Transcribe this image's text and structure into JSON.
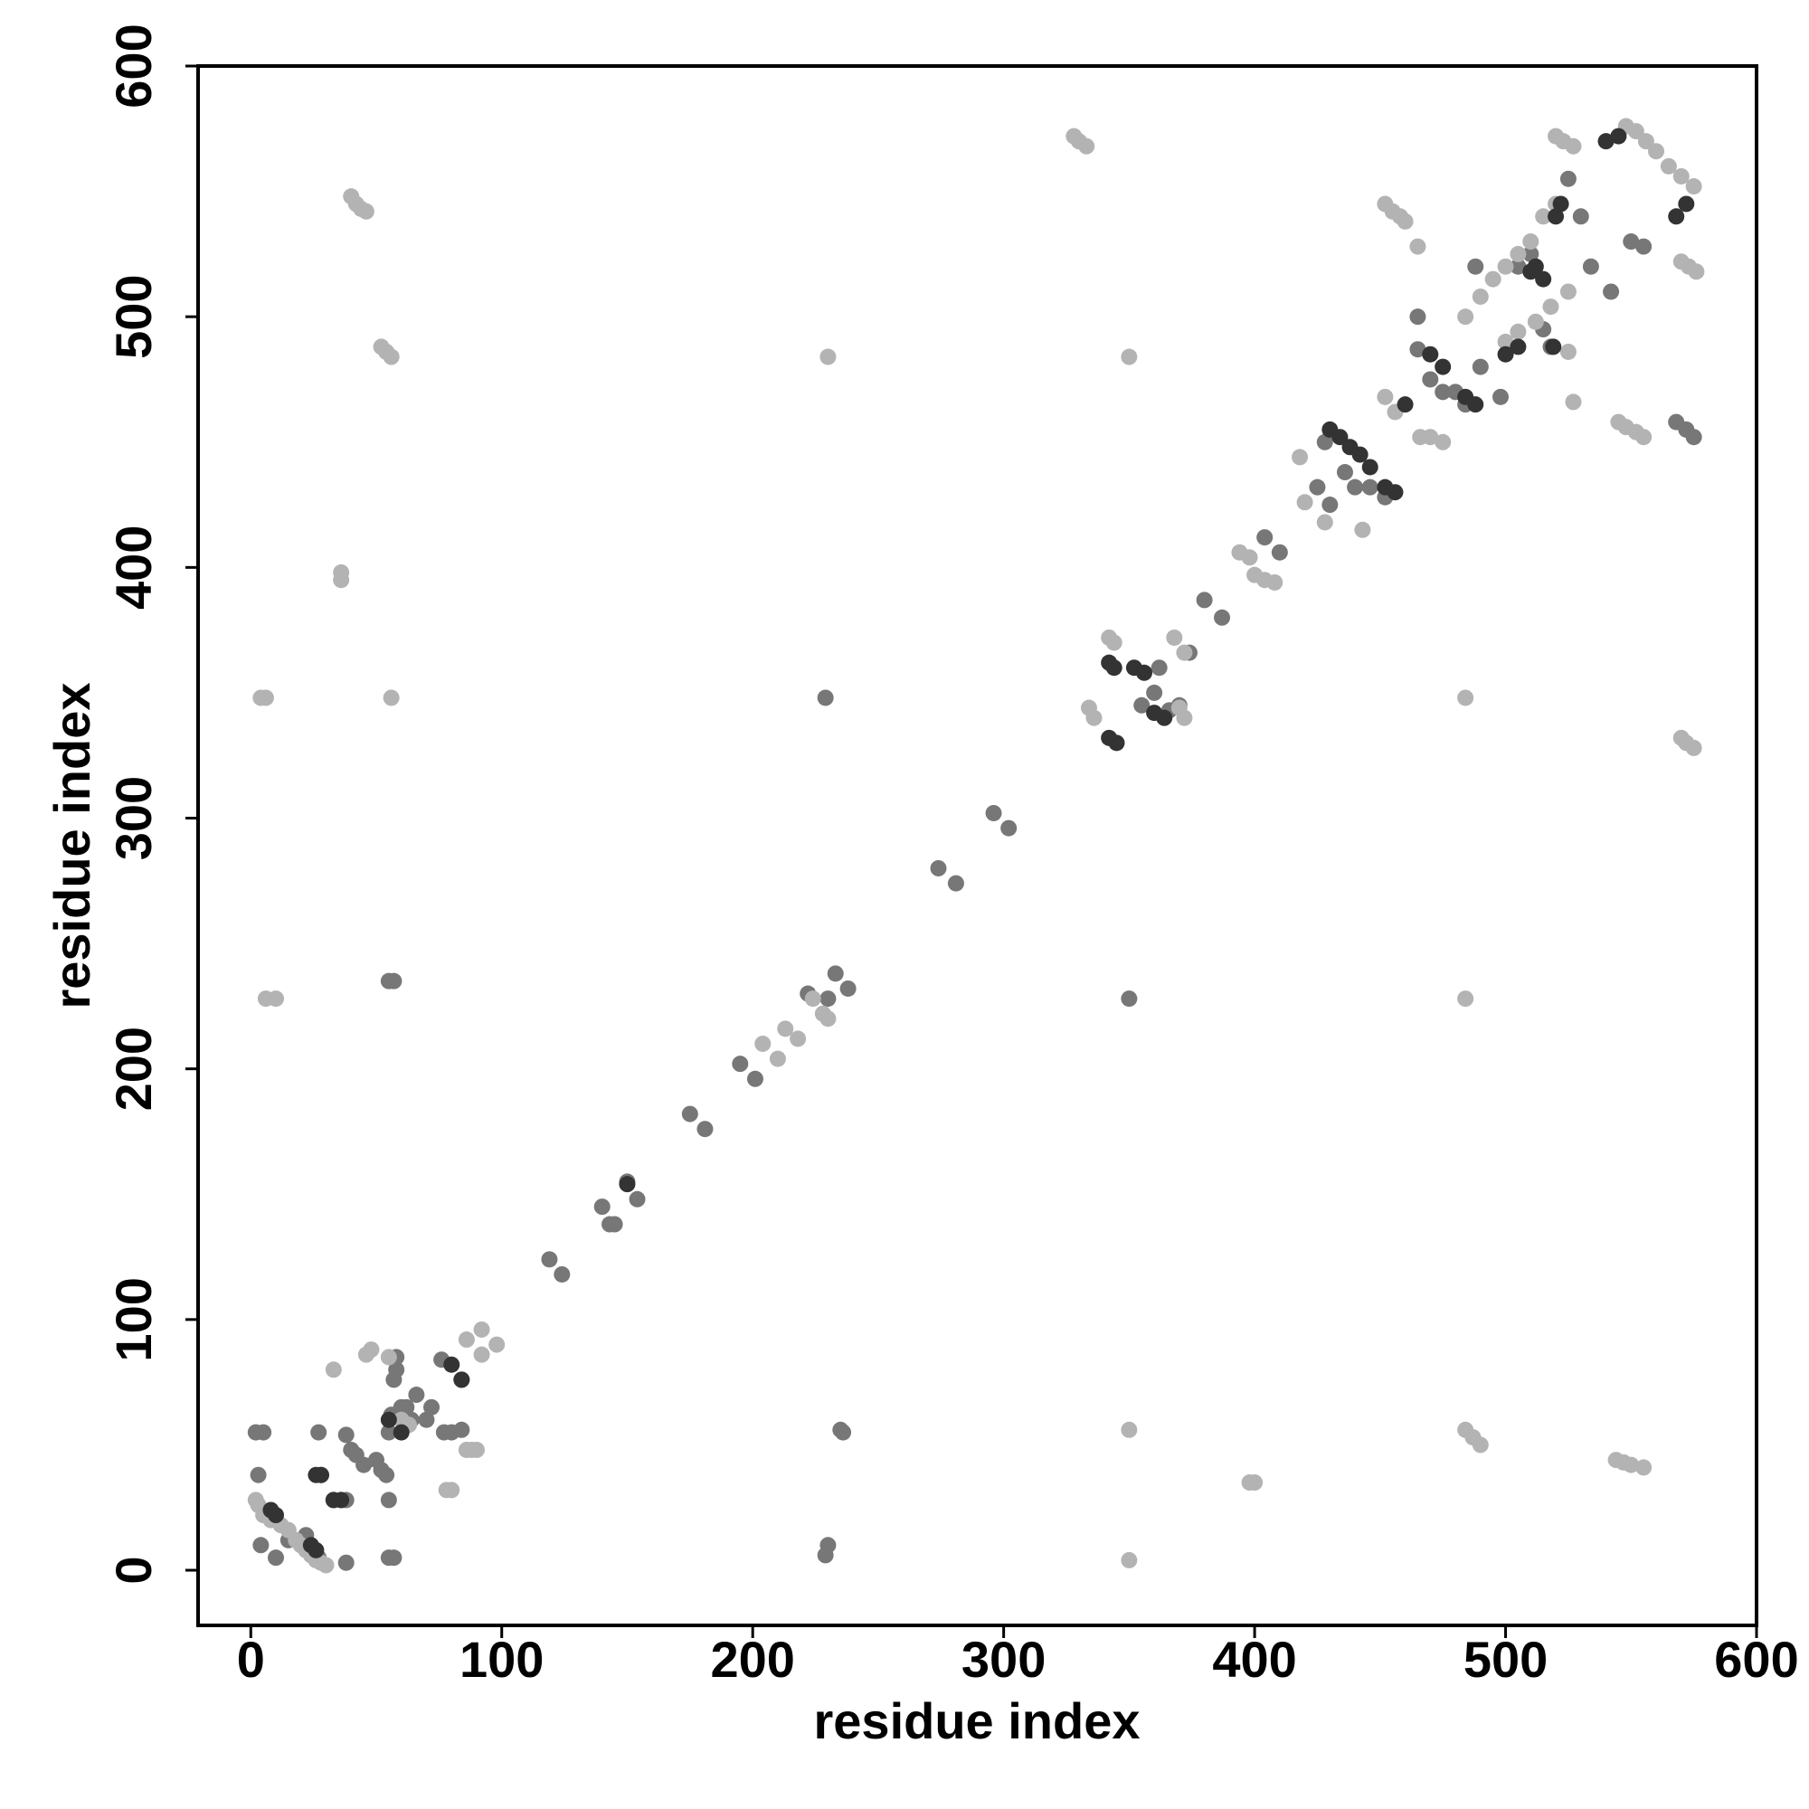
{
  "chart_data": {
    "type": "scatter",
    "x_label": "residue index",
    "y_label": "residue index",
    "xlim": [
      -21,
      600
    ],
    "ylim": [
      -22,
      600
    ],
    "xticks": [
      0,
      100,
      200,
      300,
      400,
      500,
      600
    ],
    "yticks": [
      0,
      100,
      200,
      300,
      400,
      500,
      600
    ],
    "series": [
      {
        "color": "#777777",
        "x": [
          2,
          5,
          3,
          4,
          10,
          15,
          20,
          22,
          25,
          27,
          27,
          28,
          33,
          36,
          38,
          38,
          38,
          40,
          42,
          45,
          50,
          52,
          54,
          55,
          55,
          56,
          58,
          58,
          57,
          60,
          62,
          64,
          66,
          70,
          72,
          76,
          77,
          80,
          84,
          84,
          55,
          57,
          55,
          57,
          119,
          124,
          140,
          143,
          145,
          150,
          154,
          175,
          181,
          195,
          201,
          230,
          229,
          229,
          233,
          238,
          235,
          236,
          230,
          222,
          274,
          281,
          296,
          302,
          350,
          355,
          360,
          362,
          366,
          370,
          374,
          380,
          387,
          404,
          410,
          425,
          430,
          428,
          436,
          440,
          446,
          452,
          465,
          470,
          475,
          465,
          480,
          484,
          490,
          498,
          505,
          510,
          530,
          534,
          525,
          542,
          550,
          555,
          568,
          572,
          575,
          515,
          518,
          488
        ],
        "values": [
          55,
          55,
          38,
          10,
          5,
          12,
          10,
          14,
          6,
          5,
          55,
          38,
          28,
          28,
          28,
          3,
          54,
          48,
          46,
          42,
          44,
          40,
          38,
          55,
          28,
          62,
          85,
          80,
          76,
          65,
          65,
          60,
          70,
          60,
          65,
          84,
          55,
          55,
          56,
          76,
          235,
          235,
          5,
          5,
          124,
          118,
          145,
          138,
          138,
          155,
          148,
          182,
          176,
          202,
          196,
          10,
          6,
          348,
          238,
          232,
          56,
          55,
          228,
          230,
          280,
          274,
          302,
          296,
          228,
          345,
          350,
          360,
          343,
          345,
          366,
          387,
          380,
          412,
          406,
          432,
          425,
          450,
          438,
          432,
          432,
          428,
          487,
          475,
          470,
          500,
          470,
          465,
          480,
          468,
          520,
          525,
          540,
          520,
          555,
          510,
          530,
          528,
          458,
          455,
          452,
          495,
          488,
          520
        ]
      },
      {
        "color": "#b3b3b3",
        "x": [
          2,
          3,
          5,
          8,
          12,
          15,
          18,
          20,
          22,
          24,
          26,
          28,
          30,
          33,
          46,
          48,
          55,
          60,
          63,
          78,
          80,
          86,
          88,
          90,
          86,
          92,
          98,
          92,
          40,
          42,
          44,
          46,
          52,
          54,
          56,
          36,
          36,
          4,
          6,
          56,
          6,
          10,
          230,
          350,
          328,
          330,
          333,
          484,
          484,
          350,
          350,
          398,
          400,
          484,
          487,
          490,
          544,
          547,
          550,
          555,
          570,
          572,
          575,
          452,
          455,
          458,
          460,
          465,
          545,
          548,
          552,
          555,
          570,
          573,
          576,
          520,
          523,
          527,
          525,
          527,
          394,
          398,
          400,
          404,
          408,
          418,
          420,
          428,
          443,
          204,
          210,
          213,
          218,
          224,
          228,
          230,
          334,
          336,
          342,
          344,
          368,
          372,
          370,
          372,
          452,
          456,
          466,
          470,
          475,
          484,
          490,
          495,
          500,
          505,
          510,
          515,
          520,
          548,
          552,
          556,
          560,
          565,
          570,
          575,
          500,
          505,
          512,
          518,
          525
        ],
        "values": [
          28,
          26,
          22,
          20,
          18,
          16,
          12,
          10,
          8,
          6,
          4,
          3,
          2,
          80,
          86,
          88,
          85,
          60,
          58,
          32,
          32,
          48,
          48,
          48,
          92,
          96,
          90,
          86,
          548,
          545,
          543,
          542,
          488,
          486,
          484,
          398,
          395,
          348,
          348,
          348,
          228,
          228,
          484,
          484,
          572,
          570,
          568,
          348,
          228,
          56,
          4,
          35,
          35,
          56,
          53,
          50,
          44,
          43,
          42,
          41,
          332,
          330,
          328,
          545,
          542,
          540,
          538,
          528,
          458,
          456,
          454,
          452,
          522,
          520,
          518,
          572,
          570,
          568,
          486,
          466,
          406,
          404,
          397,
          395,
          394,
          444,
          426,
          418,
          415,
          210,
          204,
          216,
          212,
          228,
          222,
          220,
          344,
          340,
          372,
          370,
          372,
          366,
          344,
          340,
          468,
          462,
          452,
          452,
          450,
          500,
          508,
          515,
          520,
          525,
          530,
          540,
          545,
          576,
          574,
          570,
          566,
          560,
          556,
          552,
          490,
          494,
          498,
          504,
          510
        ]
      },
      {
        "color": "#333333",
        "x": [
          26,
          28,
          33,
          36,
          8,
          10,
          24,
          26,
          55,
          60,
          80,
          84,
          150,
          342,
          344,
          342,
          345,
          352,
          356,
          360,
          364,
          430,
          434,
          438,
          442,
          446,
          452,
          456,
          460,
          470,
          475,
          484,
          488,
          500,
          505,
          512,
          515,
          520,
          522,
          540,
          545,
          568,
          572,
          519,
          510
        ],
        "values": [
          38,
          38,
          28,
          28,
          24,
          22,
          10,
          8,
          60,
          55,
          82,
          76,
          154,
          362,
          360,
          332,
          330,
          360,
          358,
          342,
          340,
          455,
          452,
          448,
          445,
          440,
          432,
          430,
          465,
          485,
          480,
          468,
          465,
          485,
          488,
          520,
          515,
          540,
          545,
          570,
          572,
          540,
          545,
          488,
          518
        ]
      }
    ]
  }
}
